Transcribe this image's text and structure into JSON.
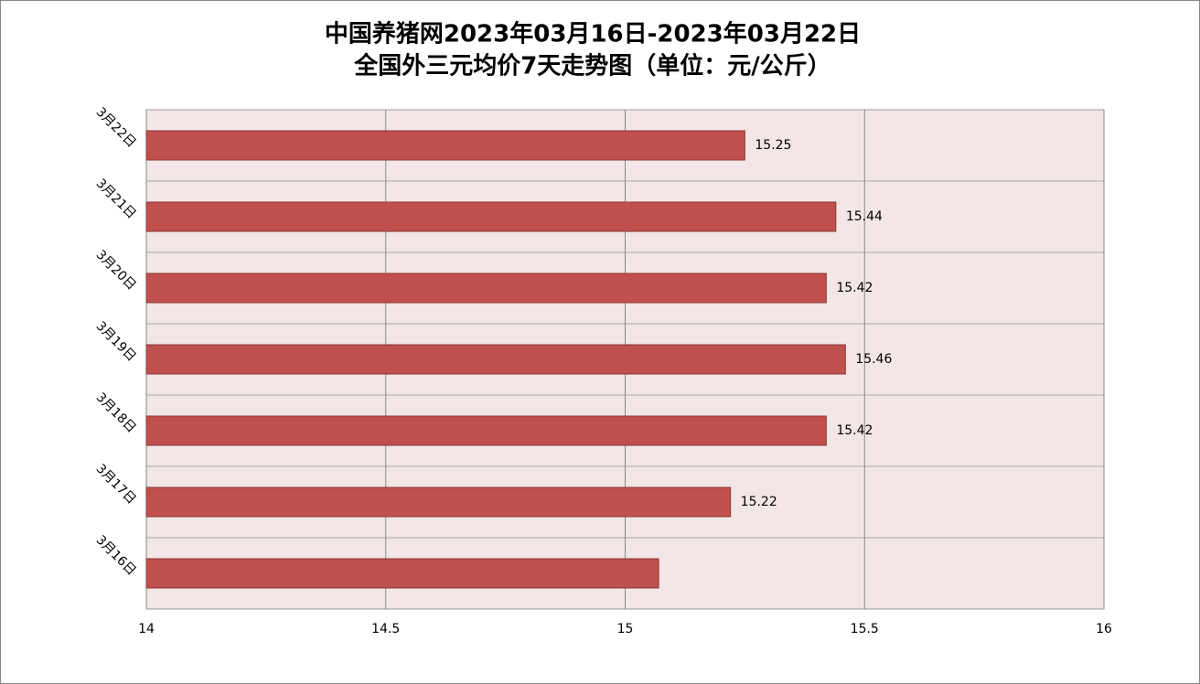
{
  "chart_data": {
    "type": "barh",
    "title": "中国养猪网2023年03月16日-2023年03月22日",
    "subtitle": "全国外三元均价7天走势图（单位：元/公斤）",
    "categories": [
      "3月16日",
      "3月17日",
      "3月18日",
      "3月19日",
      "3月20日",
      "3月21日",
      "3月22日"
    ],
    "values": [
      15.07,
      15.22,
      15.42,
      15.46,
      15.42,
      15.44,
      15.25
    ],
    "value_labels": [
      null,
      "15.22",
      "15.42",
      "15.46",
      "15.42",
      "15.44",
      "15.25"
    ],
    "color": "#c0504d",
    "xlim": [
      14,
      16
    ],
    "xticks": [
      14,
      14.5,
      15,
      15.5,
      16
    ],
    "grid": true
  }
}
